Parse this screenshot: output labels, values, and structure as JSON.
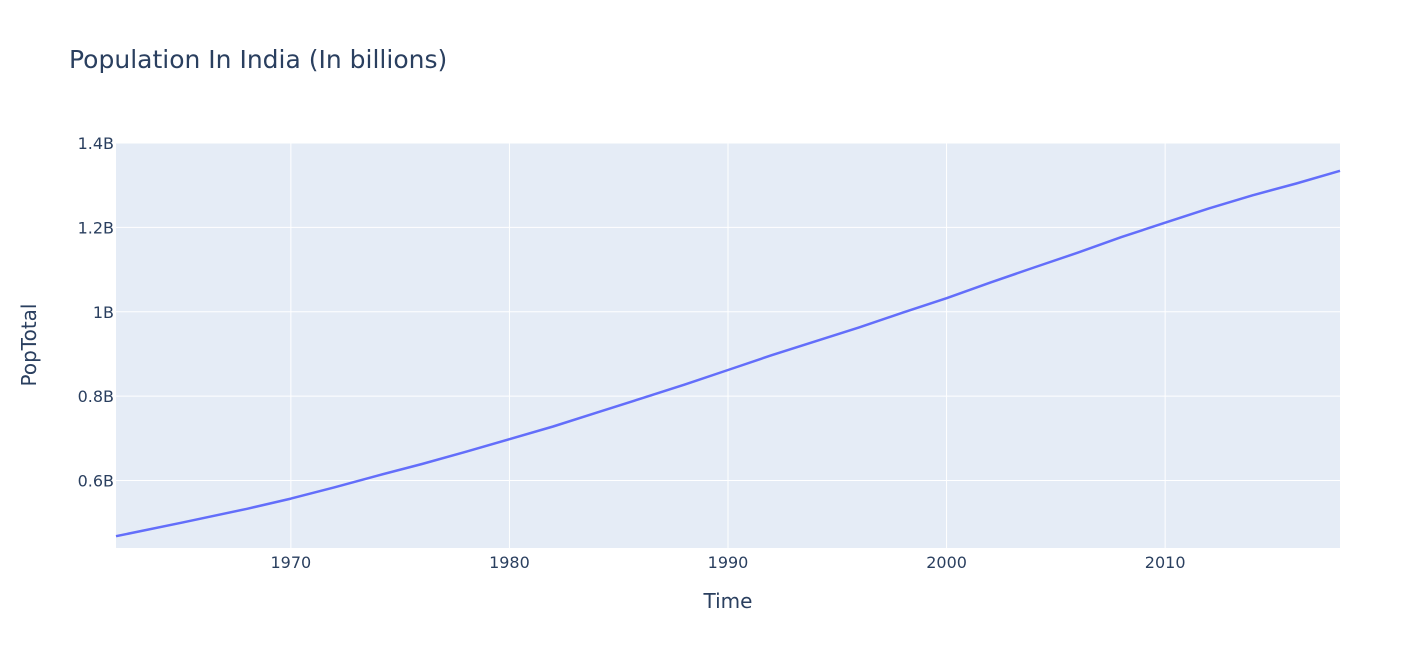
{
  "chart_data": {
    "type": "line",
    "title": "Population In India (In billions)",
    "xlabel": "Time",
    "ylabel": "PopTotal",
    "xlim": [
      1962,
      2018
    ],
    "ylim": [
      0.44,
      1.4
    ],
    "x_ticks": [
      1970,
      1980,
      1990,
      2000,
      2010
    ],
    "x_tick_labels": [
      "1970",
      "1980",
      "1990",
      "2000",
      "2010"
    ],
    "y_ticks": [
      0.6,
      0.8,
      1.0,
      1.2,
      1.4
    ],
    "y_tick_labels": [
      "0.6B",
      "0.8B",
      "1B",
      "1.2B",
      "1.4B"
    ],
    "grid": true,
    "colors": {
      "plot_bg": "#e5ecf6",
      "grid": "#ffffff",
      "line": "#636efa",
      "text": "#2a3f5f"
    },
    "series": [
      {
        "x": [
          1962,
          1965,
          1968,
          1970,
          1972,
          1974,
          1976,
          1978,
          1980,
          1982,
          1984,
          1986,
          1988,
          1990,
          1992,
          1994,
          1996,
          1998,
          2000,
          2002,
          2004,
          2006,
          2008,
          2010,
          2012,
          2014,
          2016,
          2018
        ],
        "values": [
          0.468,
          0.5,
          0.533,
          0.557,
          0.584,
          0.612,
          0.639,
          0.668,
          0.698,
          0.728,
          0.761,
          0.794,
          0.827,
          0.862,
          0.897,
          0.93,
          0.963,
          0.998,
          1.032,
          1.069,
          1.105,
          1.14,
          1.177,
          1.211,
          1.245,
          1.276,
          1.304,
          1.334
        ]
      }
    ]
  }
}
